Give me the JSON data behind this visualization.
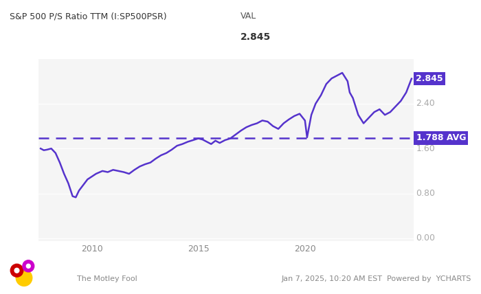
{
  "title_left": "S&P 500 P/S Ratio TTM (I:SP500PSR)",
  "title_col": "VAL",
  "title_val": "2.845",
  "avg_value": 1.788,
  "avg_label": "1.788 AVG",
  "last_value": 2.845,
  "last_label": "2.845",
  "line_color": "#5533cc",
  "avg_line_color": "#5533cc",
  "label_bg_color": "#5533cc",
  "label_text_color": "#ffffff",
  "background_color": "#ffffff",
  "plot_bg_color": "#f5f5f5",
  "yticks": [
    0.0,
    0.8,
    1.6,
    2.4
  ],
  "ylim": [
    -0.05,
    3.2
  ],
  "footer_left": "The Motley Fool",
  "footer_right": "Jan 7, 2025, 10:20 AM EST  Powered by  YCHARTS",
  "x_start_year": 2007.5,
  "x_end_year": 2025.1,
  "xtick_years": [
    2010,
    2015,
    2020
  ],
  "data_x": [
    2007.6,
    2007.75,
    2007.9,
    2008.1,
    2008.3,
    2008.5,
    2008.7,
    2008.9,
    2009.1,
    2009.25,
    2009.4,
    2009.6,
    2009.8,
    2010.0,
    2010.2,
    2010.5,
    2010.75,
    2011.0,
    2011.25,
    2011.5,
    2011.75,
    2012.0,
    2012.25,
    2012.5,
    2012.75,
    2013.0,
    2013.25,
    2013.5,
    2013.75,
    2014.0,
    2014.25,
    2014.5,
    2014.75,
    2015.0,
    2015.2,
    2015.4,
    2015.6,
    2015.8,
    2016.0,
    2016.25,
    2016.5,
    2016.75,
    2017.0,
    2017.25,
    2017.5,
    2017.75,
    2018.0,
    2018.25,
    2018.5,
    2018.75,
    2019.0,
    2019.25,
    2019.5,
    2019.75,
    2020.0,
    2020.1,
    2020.3,
    2020.5,
    2020.75,
    2021.0,
    2021.25,
    2021.5,
    2021.75,
    2022.0,
    2022.1,
    2022.25,
    2022.5,
    2022.75,
    2023.0,
    2023.25,
    2023.5,
    2023.75,
    2024.0,
    2024.25,
    2024.5,
    2024.75,
    2025.0
  ],
  "data_y": [
    1.6,
    1.57,
    1.58,
    1.6,
    1.52,
    1.35,
    1.15,
    0.98,
    0.75,
    0.73,
    0.85,
    0.95,
    1.05,
    1.1,
    1.15,
    1.2,
    1.18,
    1.22,
    1.2,
    1.18,
    1.15,
    1.22,
    1.28,
    1.32,
    1.35,
    1.42,
    1.48,
    1.52,
    1.58,
    1.65,
    1.68,
    1.72,
    1.75,
    1.78,
    1.76,
    1.72,
    1.68,
    1.74,
    1.7,
    1.75,
    1.78,
    1.85,
    1.92,
    1.98,
    2.02,
    2.05,
    2.1,
    2.08,
    2.0,
    1.95,
    2.05,
    2.12,
    2.18,
    2.22,
    2.1,
    1.8,
    2.2,
    2.4,
    2.55,
    2.75,
    2.85,
    2.9,
    2.95,
    2.8,
    2.6,
    2.5,
    2.2,
    2.05,
    2.15,
    2.25,
    2.3,
    2.2,
    2.25,
    2.35,
    2.45,
    2.6,
    2.845
  ]
}
